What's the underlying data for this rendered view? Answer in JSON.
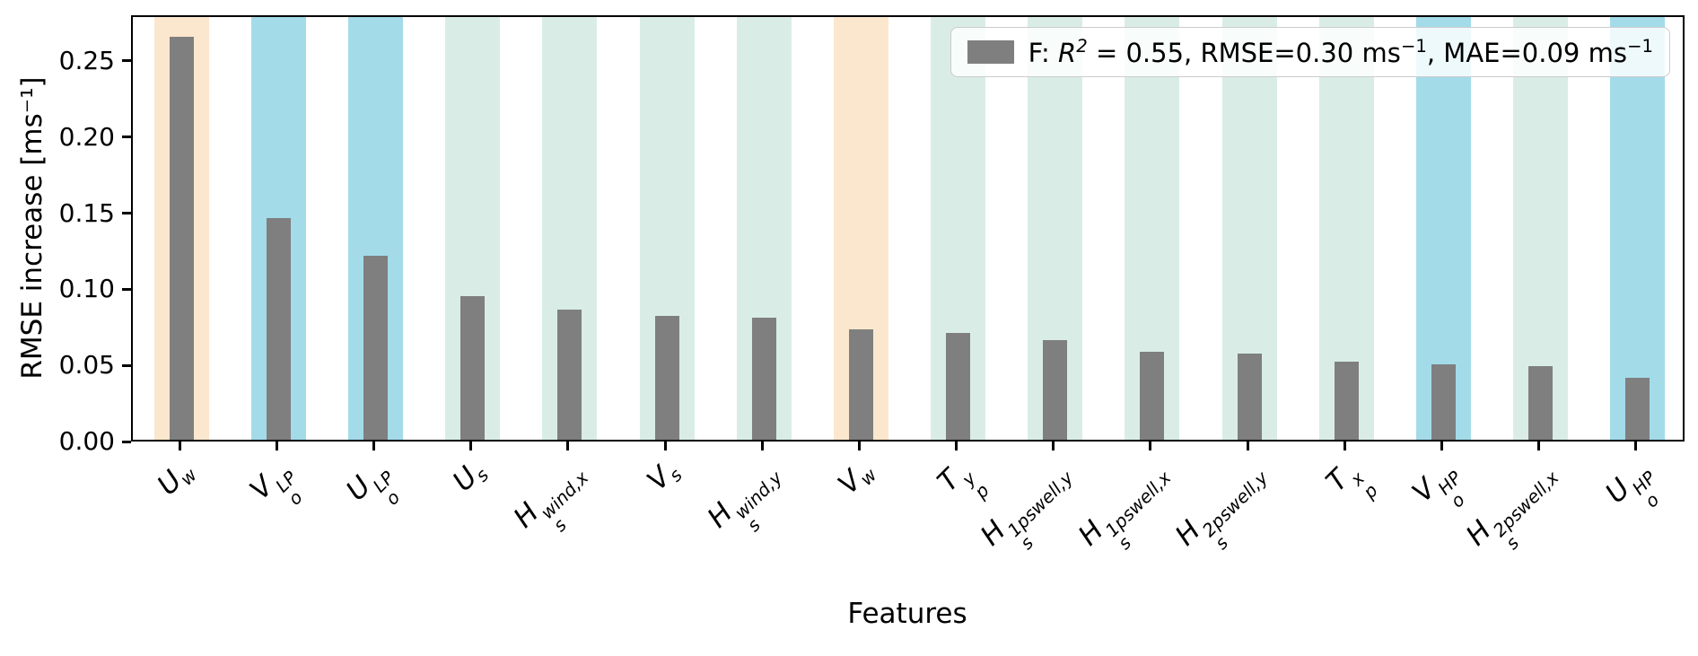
{
  "chart_data": {
    "type": "bar",
    "title": "",
    "xlabel": "Features",
    "ylabel": "RMSE increase [ms⁻¹]",
    "ylim": [
      0,
      0.28
    ],
    "yticks": [
      0,
      0.05,
      0.1,
      0.15,
      0.2,
      0.25
    ],
    "ytick_labels": [
      "0.00",
      "0.05",
      "0.10",
      "0.15",
      "0.20",
      "0.25"
    ],
    "grid": false,
    "legend_position": "upper right",
    "bar_color": "#7f7f7f",
    "band_palette": {
      "orange": "#fbe7cd",
      "cyan": "#a3dbe9",
      "teal": "#d9ede6"
    },
    "categories": [
      {
        "base": "U",
        "sub": "w",
        "sup": "",
        "band": "orange"
      },
      {
        "base": "V",
        "sub": "o",
        "sup": "LP",
        "band": "cyan"
      },
      {
        "base": "U",
        "sub": "o",
        "sup": "LP",
        "band": "cyan"
      },
      {
        "base": "U",
        "sub": "s",
        "sup": "",
        "band": "teal"
      },
      {
        "base": "H",
        "sub": "s",
        "sup": "wind,x",
        "band": "teal"
      },
      {
        "base": "V",
        "sub": "s",
        "sup": "",
        "band": "teal"
      },
      {
        "base": "H",
        "sub": "s",
        "sup": "wind,y",
        "band": "teal"
      },
      {
        "base": "V",
        "sub": "w",
        "sup": "",
        "band": "orange"
      },
      {
        "base": "T",
        "sub": "p",
        "sup": "y",
        "band": "teal"
      },
      {
        "base": "H",
        "sub": "s",
        "sup": "1pswell,y",
        "band": "teal"
      },
      {
        "base": "H",
        "sub": "s",
        "sup": "1pswell,x",
        "band": "teal"
      },
      {
        "base": "H",
        "sub": "s",
        "sup": "2pswell,y",
        "band": "teal"
      },
      {
        "base": "T",
        "sub": "p",
        "sup": "x",
        "band": "teal"
      },
      {
        "base": "V",
        "sub": "o",
        "sup": "HP",
        "band": "cyan"
      },
      {
        "base": "H",
        "sub": "s",
        "sup": "2pswell,x",
        "band": "teal"
      },
      {
        "base": "U",
        "sub": "o",
        "sup": "HP",
        "band": "cyan"
      }
    ],
    "values": [
      0.267,
      0.147,
      0.122,
      0.095,
      0.086,
      0.082,
      0.081,
      0.073,
      0.071,
      0.066,
      0.058,
      0.057,
      0.052,
      0.05,
      0.049,
      0.041
    ],
    "legend": {
      "swatch_color": "#7f7f7f",
      "text": "F: R² = 0.55, RMSE=0.30 ms⁻¹, MAE=0.09 ms⁻¹",
      "entry_parts": [
        {
          "text": "F: "
        },
        {
          "text": "R",
          "italic": true
        },
        {
          "text": "2",
          "sup": true,
          "italic": true
        },
        {
          "text": " = 0.55, RMSE=0.30 ms"
        },
        {
          "text": "−1",
          "sup": true
        },
        {
          "text": ", MAE=0.09 ms"
        },
        {
          "text": "−1",
          "sup": true
        }
      ]
    }
  }
}
